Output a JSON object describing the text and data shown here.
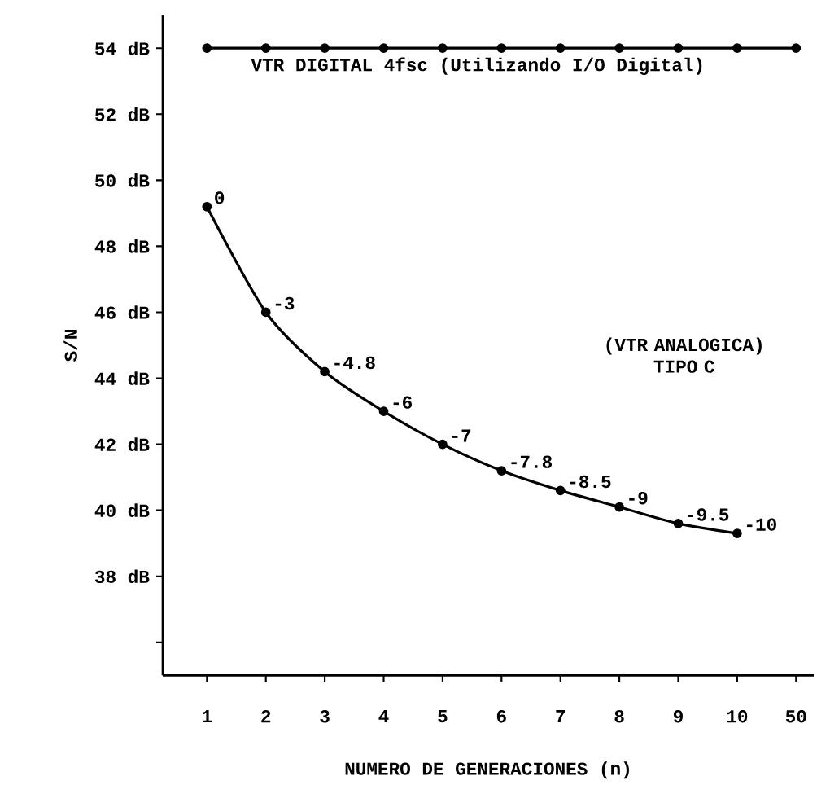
{
  "chart_data": {
    "type": "line",
    "xlabel": "NUMERO DE GENERACIONES (n)",
    "ylabel": "S/N",
    "categories": [
      "1",
      "2",
      "3",
      "4",
      "5",
      "6",
      "7",
      "8",
      "9",
      "10",
      "50"
    ],
    "series": [
      {
        "name": "VTR DIGITAL 4fsc (Utilizando I/O Digital)",
        "color": "#000000",
        "values": [
          54,
          54,
          54,
          54,
          54,
          54,
          54,
          54,
          54,
          54,
          54
        ]
      },
      {
        "color": "#000000",
        "values": [
          49.2,
          46,
          44.2,
          43,
          42,
          41.2,
          40.6,
          40.1,
          39.6,
          39.3,
          null
        ]
      }
    ],
    "annotations": [
      "(VTR ANALOGICA) TIPO C",
      {
        "text": "0",
        "x": "1",
        "y": 49.2
      },
      {
        "text": "-3",
        "x": "2",
        "y": 46
      },
      {
        "text": "-4.8",
        "x": "3",
        "y": 44.2
      },
      {
        "text": "-6",
        "x": "4",
        "y": 43
      },
      {
        "text": "-7",
        "x": "5",
        "y": 42
      },
      {
        "text": "-7.8",
        "x": "6",
        "y": 41.2
      },
      {
        "text": "-8.5",
        "x": "7",
        "y": 40.6
      },
      {
        "text": "-9",
        "x": "8",
        "y": 40.1
      },
      {
        "text": "-9.5",
        "x": "9",
        "y": 39.6
      },
      {
        "text": "-10",
        "x": "10",
        "y": 39.3
      }
    ],
    "ylim": [
      35,
      55
    ],
    "yticks": [
      {
        "value": 36,
        "label": null
      },
      {
        "value": 38,
        "label": "38 dB"
      },
      {
        "value": 40,
        "label": "40 dB"
      },
      {
        "value": 42,
        "label": "42 dB"
      },
      {
        "value": 44,
        "label": "44 dB"
      },
      {
        "value": 46,
        "label": "46 dB"
      },
      {
        "value": 48,
        "label": "48 dB"
      },
      {
        "value": 50,
        "label": "50 dB"
      },
      {
        "value": 52,
        "label": "52 dB"
      },
      {
        "value": 54,
        "label": "54 dB"
      }
    ],
    "marker": "circle",
    "line_style": "solid",
    "grid": false
  }
}
